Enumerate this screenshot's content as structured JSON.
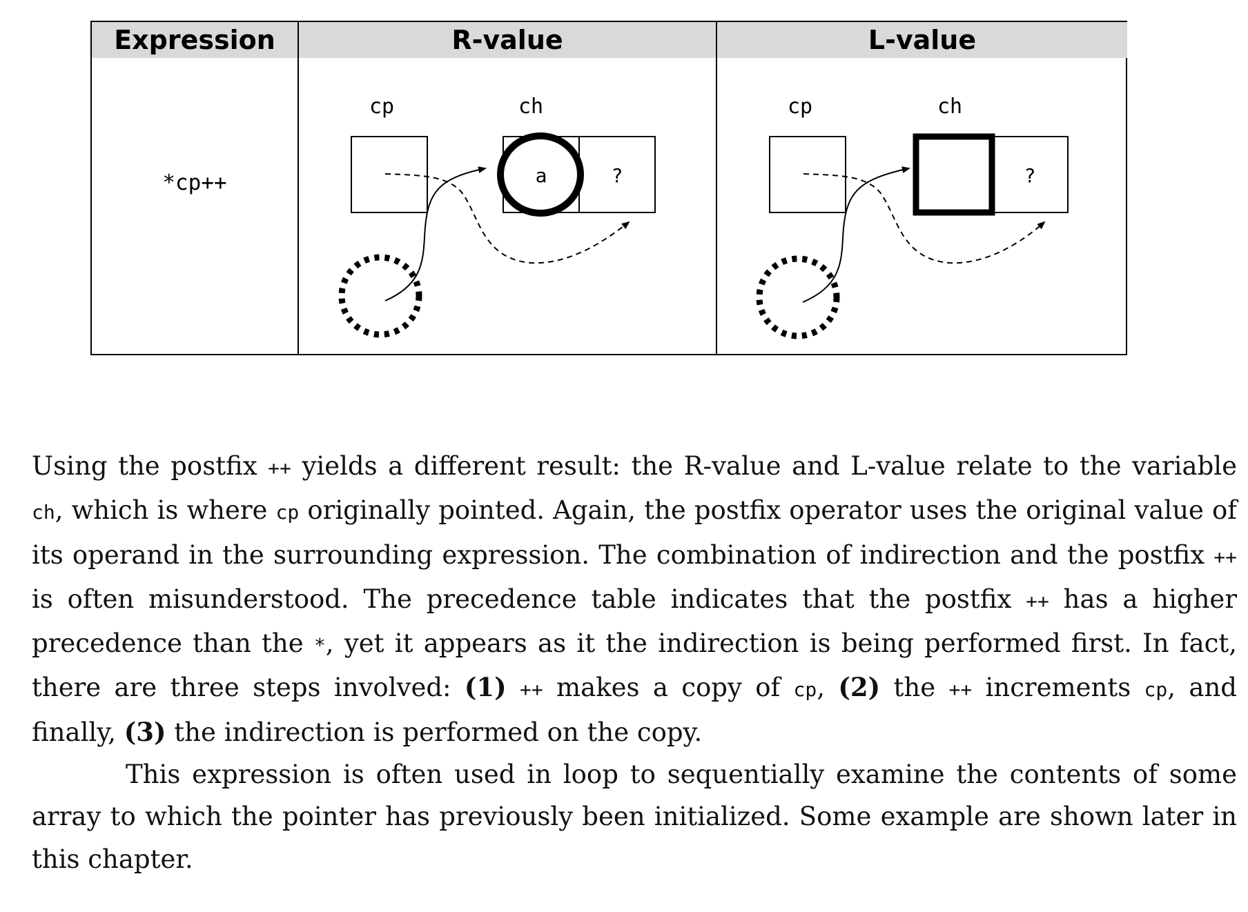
{
  "table": {
    "headers": [
      "Expression",
      "R-value",
      "L-value"
    ],
    "expression": "*cp++",
    "rvalue": {
      "pointer_label": "cp",
      "target_label": "ch",
      "target_value": "a",
      "next_value": "?"
    },
    "lvalue": {
      "pointer_label": "cp",
      "target_label": "ch",
      "target_value": "",
      "next_value": "?"
    }
  },
  "paragraphs": {
    "p1": {
      "t1": "Using the postfix ",
      "c1": "++",
      "t2": " yields a different result: the R-value and L-value relate to the variable ",
      "c2": "ch",
      "t3": ", which is where ",
      "c3": "cp",
      "t4": " originally pointed. Again, the postfix operator uses the original value of its operand in the surrounding expression. The combination of indirection and the postfix ",
      "c4": "++",
      "t5": " is often misunderstood.  The precedence table indicates that the postfix ",
      "c5": "++",
      "t6": " has a higher precedence than the ",
      "c6": "*",
      "t7": ", yet it appears as it the indirection is being performed first.  In fact, there are three steps involved: ",
      "b1": "(1)",
      "t8": " ",
      "c7": "++",
      "t9": " makes a copy of ",
      "c8": "cp",
      "t10": ", ",
      "b2": "(2)",
      "t11": " the ",
      "c9": "++",
      "t12": " increments ",
      "c10": "cp",
      "t13": ", and finally, ",
      "b3": "(3)",
      "t14": " the indirection is performed on the copy."
    },
    "p2": "This expression is often used in loop to sequentially examine the contents of some array to which the pointer has previously been initialized. Some example are shown later in this chapter."
  }
}
